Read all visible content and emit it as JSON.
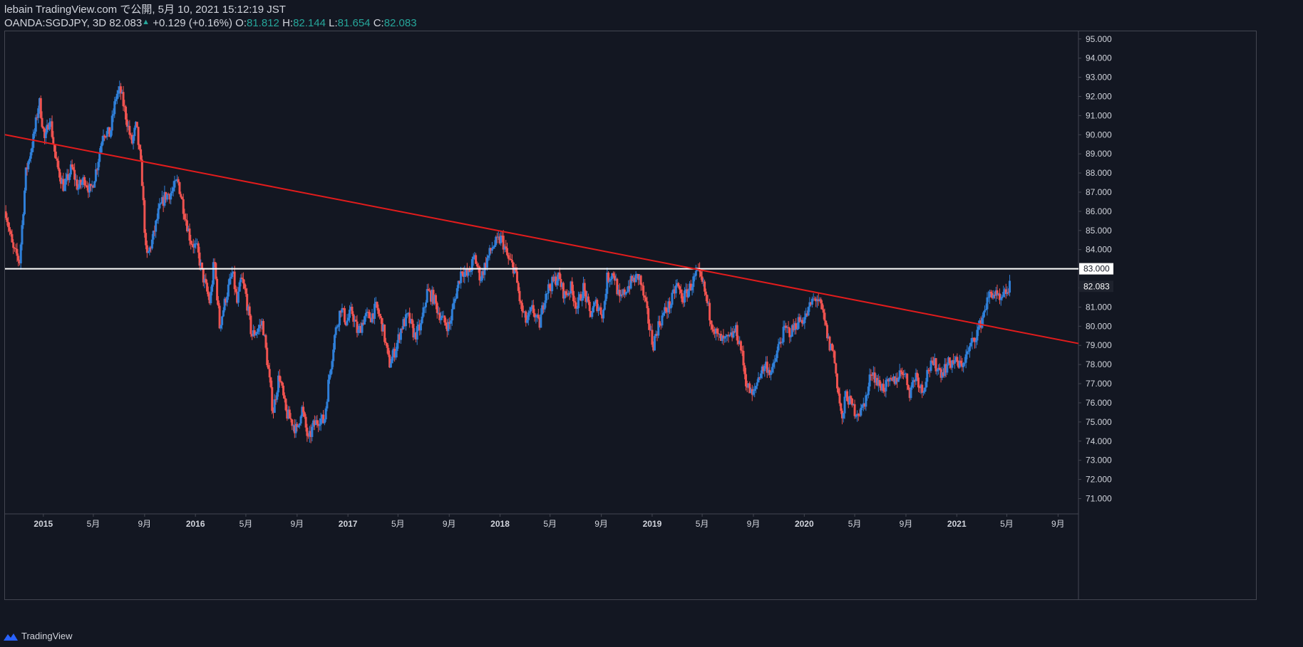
{
  "header": {
    "line1": "lebain TradingView.com で公開, 5月 10, 2021 15:12:19 JST",
    "symbol": "OANDA:SGDJPY, 3D",
    "last": "82.083",
    "change": "+0.129 (+0.16%)",
    "o_label": "O:",
    "o_value": "81.812",
    "h_label": "H:",
    "h_value": "82.144",
    "l_label": "L:",
    "l_value": "81.654",
    "c_label": "C:",
    "c_value": "82.083"
  },
  "footer": {
    "brand": "TradingView"
  },
  "colors": {
    "background": "#131722",
    "up": "#2f7fd8",
    "down": "#ef5350",
    "trendline": "#e31c1c",
    "hline": "#ffffff",
    "axis_text": "#d1d4dc",
    "border": "#434651"
  },
  "chart_data": {
    "type": "candlestick",
    "symbol": "OANDA:SGDJPY",
    "interval": "3D",
    "ylim": [
      70.2,
      95.4
    ],
    "xlim": [
      "2014-10-01",
      "2021-10-20"
    ],
    "y_ticks": [
      "95.000",
      "94.000",
      "93.000",
      "92.000",
      "91.000",
      "90.000",
      "89.000",
      "88.000",
      "87.000",
      "86.000",
      "85.000",
      "84.000",
      "83.000",
      "82.000",
      "81.000",
      "80.000",
      "79.000",
      "78.000",
      "77.000",
      "76.000",
      "75.000",
      "74.000",
      "73.000",
      "72.000",
      "71.000"
    ],
    "x_ticks": [
      {
        "label": "2015",
        "date": "2015-01-01"
      },
      {
        "label": "5月",
        "date": "2015-05-01"
      },
      {
        "label": "9月",
        "date": "2015-09-01"
      },
      {
        "label": "2016",
        "date": "2016-01-01"
      },
      {
        "label": "5月",
        "date": "2016-05-01"
      },
      {
        "label": "9月",
        "date": "2016-09-01"
      },
      {
        "label": "2017",
        "date": "2017-01-01"
      },
      {
        "label": "5月",
        "date": "2017-05-01"
      },
      {
        "label": "9月",
        "date": "2017-09-01"
      },
      {
        "label": "2018",
        "date": "2018-01-01"
      },
      {
        "label": "5月",
        "date": "2018-05-01"
      },
      {
        "label": "9月",
        "date": "2018-09-01"
      },
      {
        "label": "2019",
        "date": "2019-01-01"
      },
      {
        "label": "5月",
        "date": "2019-05-01"
      },
      {
        "label": "9月",
        "date": "2019-09-01"
      },
      {
        "label": "2020",
        "date": "2020-01-01"
      },
      {
        "label": "5月",
        "date": "2020-05-01"
      },
      {
        "label": "9月",
        "date": "2020-09-01"
      },
      {
        "label": "2021",
        "date": "2021-01-01"
      },
      {
        "label": "5月",
        "date": "2021-05-01"
      },
      {
        "label": "9月",
        "date": "2021-09-01"
      }
    ],
    "price_path": [
      [
        "2014-10-03",
        86.0
      ],
      [
        "2014-10-20",
        84.0
      ],
      [
        "2014-11-05",
        83.4
      ],
      [
        "2014-11-20",
        88.0
      ],
      [
        "2014-12-10",
        90.0
      ],
      [
        "2014-12-22",
        91.8
      ],
      [
        "2015-01-05",
        89.6
      ],
      [
        "2015-01-16",
        91.0
      ],
      [
        "2015-02-01",
        88.5
      ],
      [
        "2015-02-20",
        87.2
      ],
      [
        "2015-03-10",
        88.3
      ],
      [
        "2015-03-25",
        87.2
      ],
      [
        "2015-04-10",
        87.7
      ],
      [
        "2015-04-25",
        87.0
      ],
      [
        "2015-05-10",
        88.4
      ],
      [
        "2015-05-25",
        90.2
      ],
      [
        "2015-06-10",
        90.0
      ],
      [
        "2015-06-25",
        92.1
      ],
      [
        "2015-07-05",
        92.3
      ],
      [
        "2015-07-20",
        90.8
      ],
      [
        "2015-08-01",
        89.5
      ],
      [
        "2015-08-12",
        90.5
      ],
      [
        "2015-08-25",
        88.0
      ],
      [
        "2015-09-05",
        83.5
      ],
      [
        "2015-09-20",
        84.5
      ],
      [
        "2015-10-05",
        86.0
      ],
      [
        "2015-10-20",
        86.8
      ],
      [
        "2015-11-05",
        87.0
      ],
      [
        "2015-11-20",
        87.6
      ],
      [
        "2015-12-05",
        86.0
      ],
      [
        "2015-12-20",
        84.5
      ],
      [
        "2016-01-05",
        84.0
      ],
      [
        "2016-01-20",
        82.5
      ],
      [
        "2016-02-05",
        81.2
      ],
      [
        "2016-02-15",
        83.5
      ],
      [
        "2016-02-28",
        80.0
      ],
      [
        "2016-03-15",
        81.6
      ],
      [
        "2016-03-30",
        82.8
      ],
      [
        "2016-04-10",
        81.2
      ],
      [
        "2016-04-20",
        82.5
      ],
      [
        "2016-05-01",
        81.6
      ],
      [
        "2016-05-15",
        79.5
      ],
      [
        "2016-05-28",
        79.8
      ],
      [
        "2016-06-10",
        80.2
      ],
      [
        "2016-06-25",
        77.5
      ],
      [
        "2016-07-05",
        75.5
      ],
      [
        "2016-07-20",
        77.5
      ],
      [
        "2016-08-05",
        75.5
      ],
      [
        "2016-08-20",
        75.0
      ],
      [
        "2016-09-01",
        74.5
      ],
      [
        "2016-09-12",
        75.8
      ],
      [
        "2016-09-28",
        74.0
      ],
      [
        "2016-10-10",
        74.8
      ],
      [
        "2016-10-25",
        75.2
      ],
      [
        "2016-11-05",
        75.0
      ],
      [
        "2016-11-15",
        77.0
      ],
      [
        "2016-11-30",
        79.5
      ],
      [
        "2016-12-15",
        81.0
      ],
      [
        "2016-12-28",
        80.2
      ],
      [
        "2017-01-10",
        80.8
      ],
      [
        "2017-01-25",
        79.6
      ],
      [
        "2017-02-10",
        80.5
      ],
      [
        "2017-02-25",
        80.5
      ],
      [
        "2017-03-10",
        81.0
      ],
      [
        "2017-03-25",
        80.0
      ],
      [
        "2017-04-10",
        78.0
      ],
      [
        "2017-04-25",
        78.8
      ],
      [
        "2017-05-10",
        80.0
      ],
      [
        "2017-05-25",
        80.5
      ],
      [
        "2017-06-10",
        79.5
      ],
      [
        "2017-06-25",
        80.0
      ],
      [
        "2017-07-10",
        81.8
      ],
      [
        "2017-07-25",
        81.5
      ],
      [
        "2017-08-05",
        80.8
      ],
      [
        "2017-08-20",
        80.2
      ],
      [
        "2017-09-01",
        80.0
      ],
      [
        "2017-09-15",
        81.5
      ],
      [
        "2017-10-01",
        83.0
      ],
      [
        "2017-10-15",
        82.6
      ],
      [
        "2017-11-01",
        83.6
      ],
      [
        "2017-11-15",
        82.5
      ],
      [
        "2017-12-01",
        83.5
      ],
      [
        "2017-12-15",
        84.2
      ],
      [
        "2018-01-05",
        84.6
      ],
      [
        "2018-01-20",
        83.5
      ],
      [
        "2018-02-05",
        83.0
      ],
      [
        "2018-02-20",
        81.0
      ],
      [
        "2018-03-05",
        80.2
      ],
      [
        "2018-03-20",
        80.9
      ],
      [
        "2018-04-05",
        80.0
      ],
      [
        "2018-04-20",
        81.8
      ],
      [
        "2018-05-05",
        82.2
      ],
      [
        "2018-05-20",
        82.6
      ],
      [
        "2018-06-05",
        81.6
      ],
      [
        "2018-06-20",
        82.0
      ],
      [
        "2018-07-05",
        81.0
      ],
      [
        "2018-07-20",
        82.0
      ],
      [
        "2018-08-05",
        80.6
      ],
      [
        "2018-08-20",
        81.2
      ],
      [
        "2018-09-05",
        80.6
      ],
      [
        "2018-09-15",
        82.5
      ],
      [
        "2018-10-01",
        82.8
      ],
      [
        "2018-10-15",
        81.3
      ],
      [
        "2018-11-01",
        82.0
      ],
      [
        "2018-11-15",
        82.4
      ],
      [
        "2018-12-01",
        82.6
      ],
      [
        "2018-12-15",
        81.2
      ],
      [
        "2019-01-03",
        79.0
      ],
      [
        "2019-01-15",
        80.0
      ],
      [
        "2019-02-01",
        80.8
      ],
      [
        "2019-02-15",
        81.2
      ],
      [
        "2019-03-01",
        82.2
      ],
      [
        "2019-03-15",
        81.4
      ],
      [
        "2019-04-01",
        82.0
      ],
      [
        "2019-04-20",
        82.8
      ],
      [
        "2019-05-05",
        82.0
      ],
      [
        "2019-05-20",
        80.5
      ],
      [
        "2019-06-05",
        79.5
      ],
      [
        "2019-06-20",
        79.2
      ],
      [
        "2019-07-05",
        79.3
      ],
      [
        "2019-07-20",
        79.8
      ],
      [
        "2019-08-01",
        79.0
      ],
      [
        "2019-08-15",
        77.0
      ],
      [
        "2019-08-30",
        76.3
      ],
      [
        "2019-09-15",
        77.5
      ],
      [
        "2019-10-01",
        78.0
      ],
      [
        "2019-10-15",
        77.5
      ],
      [
        "2019-11-01",
        79.0
      ],
      [
        "2019-11-15",
        79.8
      ],
      [
        "2019-12-01",
        79.7
      ],
      [
        "2019-12-15",
        80.2
      ],
      [
        "2020-01-05",
        80.5
      ],
      [
        "2020-01-20",
        81.3
      ],
      [
        "2020-02-01",
        81.5
      ],
      [
        "2020-02-15",
        80.6
      ],
      [
        "2020-03-01",
        79.0
      ],
      [
        "2020-03-10",
        78.8
      ],
      [
        "2020-03-20",
        77.0
      ],
      [
        "2020-04-01",
        75.0
      ],
      [
        "2020-04-10",
        76.5
      ],
      [
        "2020-04-20",
        76.0
      ],
      [
        "2020-05-01",
        75.6
      ],
      [
        "2020-05-15",
        75.5
      ],
      [
        "2020-06-01",
        76.5
      ],
      [
        "2020-06-10",
        77.8
      ],
      [
        "2020-06-25",
        77.0
      ],
      [
        "2020-07-10",
        76.8
      ],
      [
        "2020-07-25",
        77.0
      ],
      [
        "2020-08-10",
        77.3
      ],
      [
        "2020-08-25",
        77.8
      ],
      [
        "2020-09-10",
        76.6
      ],
      [
        "2020-09-25",
        77.5
      ],
      [
        "2020-10-10",
        76.6
      ],
      [
        "2020-10-25",
        77.8
      ],
      [
        "2020-11-10",
        78.0
      ],
      [
        "2020-11-25",
        77.6
      ],
      [
        "2020-12-10",
        78.0
      ],
      [
        "2020-12-25",
        78.2
      ],
      [
        "2021-01-10",
        77.9
      ],
      [
        "2021-01-25",
        78.5
      ],
      [
        "2021-02-10",
        79.3
      ],
      [
        "2021-02-25",
        80.0
      ],
      [
        "2021-03-10",
        81.0
      ],
      [
        "2021-03-25",
        81.8
      ],
      [
        "2021-04-05",
        81.6
      ],
      [
        "2021-04-15",
        81.2
      ],
      [
        "2021-04-25",
        81.6
      ],
      [
        "2021-05-05",
        82.0
      ],
      [
        "2021-05-10",
        82.083
      ]
    ],
    "trendline": [
      {
        "date": "2014-10-01",
        "price": 90.0
      },
      {
        "date": "2021-10-20",
        "price": 79.1
      }
    ],
    "hline": {
      "price": 83.0,
      "label": "83.000"
    },
    "last_price_label": "82.083"
  }
}
